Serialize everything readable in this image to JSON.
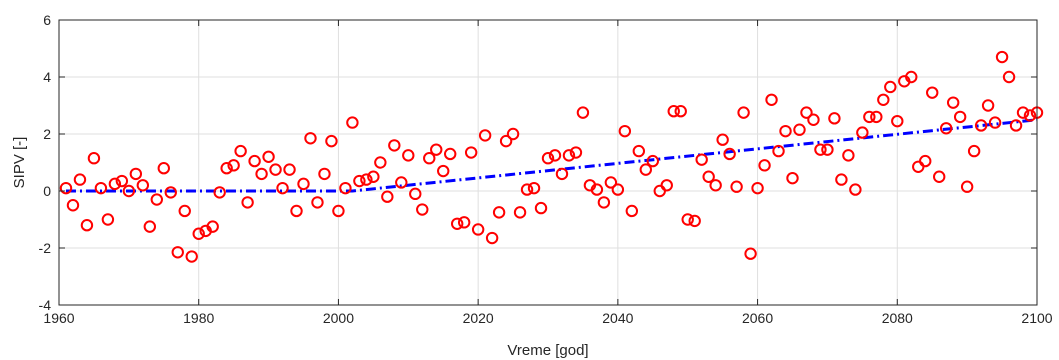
{
  "chart_data": {
    "type": "scatter",
    "title": "",
    "xlabel": "Vreme [god]",
    "ylabel": "SIPV [-]",
    "xlim": [
      1960,
      2100
    ],
    "ylim": [
      -4,
      6
    ],
    "xticks": [
      1960,
      1980,
      2000,
      2020,
      2040,
      2060,
      2080,
      2100
    ],
    "yticks": [
      -4,
      -2,
      0,
      2,
      4,
      6
    ],
    "xtick_labels": [
      "1960",
      "1980",
      "2000",
      "2020",
      "2040",
      "2060",
      "2080",
      "2100"
    ],
    "ytick_labels": [
      "-4",
      "-2",
      "0",
      "2",
      "4",
      "6"
    ],
    "grid": true,
    "colors": {
      "points": "#ff0000",
      "trend": "#0000ff",
      "grid": "#dfdfdf",
      "axis": "#262626"
    },
    "series": [
      {
        "kind": "scatter",
        "marker": "circle-open",
        "x": [
          1961,
          1962,
          1963,
          1964,
          1965,
          1966,
          1967,
          1968,
          1969,
          1970,
          1971,
          1972,
          1973,
          1974,
          1975,
          1976,
          1977,
          1978,
          1979,
          1980,
          1981,
          1982,
          1983,
          1984,
          1985,
          1986,
          1987,
          1988,
          1989,
          1990,
          1991,
          1992,
          1993,
          1994,
          1995,
          1996,
          1997,
          1998,
          1999,
          2000,
          2001,
          2002,
          2003,
          2004,
          2005,
          2006,
          2007,
          2008,
          2009,
          2010,
          2011,
          2012,
          2013,
          2014,
          2015,
          2016,
          2017,
          2018,
          2019,
          2020,
          2021,
          2022,
          2023,
          2024,
          2025,
          2026,
          2027,
          2028,
          2029,
          2030,
          2031,
          2032,
          2033,
          2034,
          2035,
          2036,
          2037,
          2038,
          2039,
          2040,
          2041,
          2042,
          2043,
          2044,
          2045,
          2046,
          2047,
          2048,
          2049,
          2050,
          2051,
          2052,
          2053,
          2054,
          2055,
          2056,
          2057,
          2058,
          2059,
          2060,
          2061,
          2062,
          2063,
          2064,
          2065,
          2066,
          2067,
          2068,
          2069,
          2070,
          2071,
          2072,
          2073,
          2074,
          2075,
          2076,
          2077,
          2078,
          2079,
          2080,
          2081,
          2082,
          2083,
          2084,
          2085,
          2086,
          2087,
          2088,
          2089,
          2090,
          2091,
          2092,
          2093,
          2094,
          2095,
          2096,
          2097,
          2098,
          2099,
          2100
        ],
        "y": [
          0.1,
          -0.5,
          0.4,
          -1.2,
          1.15,
          0.1,
          -1.0,
          0.25,
          0.35,
          0.0,
          0.6,
          0.2,
          -1.25,
          -0.3,
          0.8,
          -0.05,
          -2.15,
          -0.7,
          -2.3,
          -1.5,
          -1.4,
          -1.25,
          -0.05,
          0.8,
          0.9,
          1.4,
          -0.4,
          1.05,
          0.6,
          1.2,
          0.75,
          0.1,
          0.75,
          -0.7,
          0.25,
          1.85,
          -0.4,
          0.6,
          1.75,
          -0.7,
          0.1,
          2.4,
          0.35,
          0.4,
          0.5,
          1.0,
          -0.2,
          1.6,
          0.3,
          1.25,
          -0.1,
          -0.65,
          1.15,
          1.45,
          0.7,
          1.3,
          -1.15,
          -1.1,
          1.35,
          -1.35,
          1.95,
          -1.65,
          -0.75,
          1.75,
          2.0,
          -0.75,
          0.05,
          0.1,
          -0.6,
          1.15,
          1.25,
          0.6,
          1.25,
          1.35,
          2.75,
          0.2,
          0.05,
          -0.4,
          0.3,
          0.05,
          2.1,
          -0.7,
          1.4,
          0.75,
          1.05,
          0.0,
          0.2,
          2.8,
          2.8,
          -1.0,
          -1.05,
          1.1,
          0.5,
          0.2,
          1.8,
          1.3,
          0.15,
          2.75,
          -2.2,
          0.1,
          0.9,
          3.2,
          1.4,
          2.1,
          0.45,
          2.15,
          2.75,
          2.5,
          1.45,
          1.45,
          2.55,
          0.4,
          1.25,
          0.05,
          2.05,
          2.6,
          2.6,
          3.2,
          3.65,
          2.45,
          3.85,
          4.0,
          0.85,
          1.05,
          3.45,
          0.5,
          2.2,
          3.1,
          2.6,
          0.15,
          1.4,
          2.3,
          3.0,
          2.4,
          4.7,
          4.0,
          2.3,
          2.75,
          2.65,
          2.75
        ]
      },
      {
        "kind": "line",
        "style": "dash-dot",
        "x": [
          1961,
          2002,
          2100
        ],
        "y": [
          0.0,
          0.0,
          2.5
        ]
      }
    ]
  }
}
